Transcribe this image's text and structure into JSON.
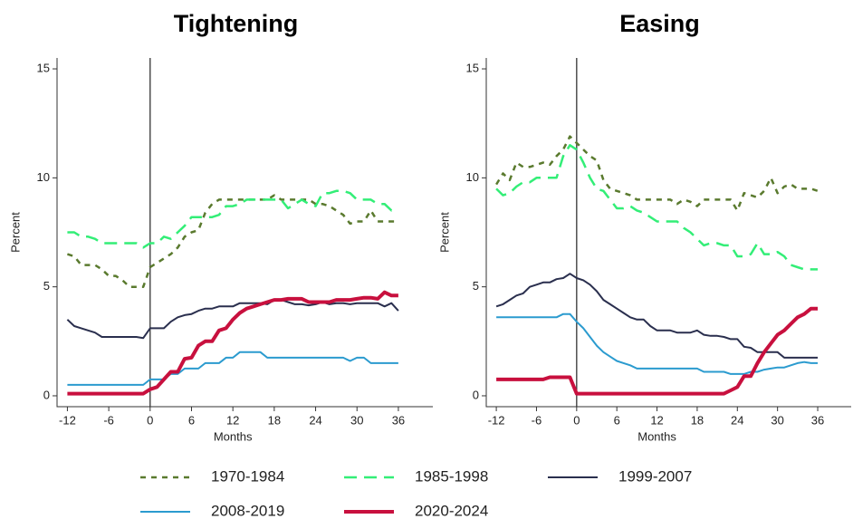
{
  "chart_data": [
    {
      "type": "line",
      "title": "Tightening",
      "xlabel": "Months",
      "ylabel": "Percent",
      "x": [
        -12,
        -11,
        -10,
        -9,
        -8,
        -7,
        -6,
        -5,
        -4,
        -3,
        -2,
        -1,
        0,
        1,
        2,
        3,
        4,
        5,
        6,
        7,
        8,
        9,
        10,
        11,
        12,
        13,
        14,
        15,
        16,
        17,
        18,
        19,
        20,
        21,
        22,
        23,
        24,
        25,
        26,
        27,
        28,
        29,
        30,
        31,
        32,
        33,
        34,
        35,
        36
      ],
      "xlim": [
        -13.5,
        41
      ],
      "ylim": [
        -0.5,
        15.5
      ],
      "xticks": [
        -12,
        -6,
        0,
        6,
        12,
        18,
        24,
        30,
        36
      ],
      "yticks": [
        0,
        5,
        10,
        15
      ],
      "vline": 0,
      "grid": false,
      "series": [
        {
          "name": "1970-1984",
          "color": "#5a7a2e",
          "dash": "dotted",
          "linewidth": 2.5,
          "values": [
            6.5,
            6.4,
            6.0,
            6.0,
            6.0,
            5.8,
            5.5,
            5.5,
            5.3,
            5.0,
            5.0,
            5.0,
            5.9,
            6.1,
            6.3,
            6.5,
            6.8,
            7.3,
            7.5,
            7.6,
            8.4,
            8.8,
            9.0,
            9.0,
            9.0,
            9.0,
            9.0,
            9.0,
            9.0,
            9.0,
            9.2,
            9.0,
            9.0,
            9.0,
            9.0,
            9.0,
            8.8,
            8.8,
            8.7,
            8.5,
            8.3,
            7.9,
            8.0,
            8.0,
            8.5,
            8.0,
            8.0,
            8.0,
            8.0
          ]
        },
        {
          "name": "1985-1998",
          "color": "#33ee77",
          "dash": "dashed",
          "linewidth": 2.5,
          "values": [
            7.5,
            7.5,
            7.3,
            7.3,
            7.2,
            7.0,
            7.0,
            7.0,
            7.0,
            7.0,
            7.0,
            6.8,
            7.0,
            7.0,
            7.3,
            7.2,
            7.5,
            7.8,
            8.2,
            8.2,
            8.2,
            8.2,
            8.3,
            8.7,
            8.7,
            8.8,
            9.0,
            9.0,
            9.0,
            9.0,
            9.0,
            9.0,
            8.6,
            8.8,
            9.0,
            8.8,
            8.7,
            9.3,
            9.3,
            9.4,
            9.4,
            9.3,
            9.0,
            9.0,
            9.0,
            8.8,
            8.8,
            8.5,
            8.6
          ]
        },
        {
          "name": "1999-2007",
          "color": "#2a2f4e",
          "dash": "solid",
          "linewidth": 2,
          "values": [
            3.5,
            3.2,
            3.1,
            3.0,
            2.9,
            2.7,
            2.7,
            2.7,
            2.7,
            2.7,
            2.7,
            2.65,
            3.1,
            3.1,
            3.1,
            3.4,
            3.6,
            3.7,
            3.75,
            3.9,
            4.0,
            4.0,
            4.1,
            4.1,
            4.1,
            4.25,
            4.25,
            4.25,
            4.25,
            4.2,
            4.4,
            4.4,
            4.3,
            4.2,
            4.2,
            4.15,
            4.2,
            4.3,
            4.2,
            4.25,
            4.25,
            4.2,
            4.25,
            4.25,
            4.25,
            4.25,
            4.1,
            4.25,
            3.9
          ]
        },
        {
          "name": "2008-2019",
          "color": "#2b9bcf",
          "dash": "solid",
          "linewidth": 2,
          "values": [
            0.5,
            0.5,
            0.5,
            0.5,
            0.5,
            0.5,
            0.5,
            0.5,
            0.5,
            0.5,
            0.5,
            0.5,
            0.75,
            0.75,
            0.75,
            1.0,
            1.0,
            1.25,
            1.25,
            1.25,
            1.5,
            1.5,
            1.5,
            1.75,
            1.75,
            2.0,
            2.0,
            2.0,
            2.0,
            1.75,
            1.75,
            1.75,
            1.75,
            1.75,
            1.75,
            1.75,
            1.75,
            1.75,
            1.75,
            1.75,
            1.75,
            1.6,
            1.75,
            1.75,
            1.5,
            1.5,
            1.5,
            1.5,
            1.5
          ]
        },
        {
          "name": "2020-2024",
          "color": "#c8103e",
          "dash": "solid",
          "linewidth": 4,
          "values": [
            0.1,
            0.1,
            0.1,
            0.1,
            0.1,
            0.1,
            0.1,
            0.1,
            0.1,
            0.1,
            0.1,
            0.1,
            0.3,
            0.4,
            0.75,
            1.1,
            1.1,
            1.7,
            1.75,
            2.3,
            2.5,
            2.5,
            3.0,
            3.1,
            3.5,
            3.8,
            4.0,
            4.1,
            4.2,
            4.3,
            4.4,
            4.4,
            4.45,
            4.45,
            4.45,
            4.3,
            4.3,
            4.3,
            4.3,
            4.4,
            4.4,
            4.4,
            4.45,
            4.5,
            4.5,
            4.45,
            4.75,
            4.6,
            4.6
          ]
        }
      ]
    },
    {
      "type": "line",
      "title": "Easing",
      "xlabel": "Months",
      "ylabel": "Percent",
      "x": [
        -12,
        -11,
        -10,
        -9,
        -8,
        -7,
        -6,
        -5,
        -4,
        -3,
        -2,
        -1,
        0,
        1,
        2,
        3,
        4,
        5,
        6,
        7,
        8,
        9,
        10,
        11,
        12,
        13,
        14,
        15,
        16,
        17,
        18,
        19,
        20,
        21,
        22,
        23,
        24,
        25,
        26,
        27,
        28,
        29,
        30,
        31,
        32,
        33,
        34,
        35,
        36
      ],
      "xlim": [
        -13.5,
        41
      ],
      "ylim": [
        -0.5,
        15.5
      ],
      "xticks": [
        -12,
        -6,
        0,
        6,
        12,
        18,
        24,
        30,
        36
      ],
      "yticks": [
        0,
        5,
        10,
        15
      ],
      "vline": 0,
      "grid": false,
      "series": [
        {
          "color": "#5a7a2e",
          "dash": "dotted",
          "linewidth": 2.5,
          "values": [
            9.7,
            10.2,
            9.9,
            10.7,
            10.5,
            10.5,
            10.6,
            10.7,
            10.6,
            11.0,
            11.3,
            11.9,
            11.6,
            11.3,
            11.0,
            10.8,
            9.9,
            9.5,
            9.4,
            9.3,
            9.2,
            9.0,
            9.0,
            9.0,
            9.0,
            9.0,
            9.0,
            8.8,
            9.0,
            8.9,
            8.7,
            9.0,
            9.0,
            9.0,
            9.0,
            9.0,
            8.5,
            9.3,
            9.2,
            9.1,
            9.4,
            10.0,
            9.3,
            9.6,
            9.7,
            9.5,
            9.5,
            9.5,
            9.4
          ]
        },
        {
          "color": "#33ee77",
          "dash": "dashed",
          "linewidth": 2.5,
          "values": [
            9.5,
            9.2,
            9.3,
            9.6,
            9.8,
            9.8,
            10.0,
            10.0,
            10.0,
            10.0,
            11.0,
            11.5,
            11.3,
            10.7,
            10.0,
            9.5,
            9.4,
            9.0,
            8.6,
            8.6,
            8.7,
            8.5,
            8.4,
            8.2,
            8.0,
            8.0,
            8.0,
            8.0,
            7.7,
            7.5,
            7.2,
            6.9,
            7.0,
            7.0,
            6.9,
            6.9,
            6.4,
            6.4,
            6.5,
            7.0,
            6.5,
            6.5,
            6.6,
            6.4,
            6.0,
            5.9,
            5.8,
            5.8,
            5.8
          ]
        },
        {
          "color": "#2a2f4e",
          "dash": "solid",
          "linewidth": 2,
          "values": [
            4.1,
            4.2,
            4.4,
            4.6,
            4.7,
            5.0,
            5.1,
            5.2,
            5.2,
            5.35,
            5.4,
            5.6,
            5.4,
            5.3,
            5.1,
            4.8,
            4.4,
            4.2,
            4.0,
            3.8,
            3.6,
            3.5,
            3.5,
            3.2,
            3.0,
            3.0,
            3.0,
            2.9,
            2.9,
            2.9,
            3.0,
            2.8,
            2.75,
            2.75,
            2.7,
            2.6,
            2.6,
            2.25,
            2.2,
            2.0,
            2.0,
            2.0,
            2.0,
            1.75,
            1.75,
            1.75,
            1.75,
            1.75,
            1.75
          ]
        },
        {
          "color": "#2b9bcf",
          "dash": "solid",
          "linewidth": 2,
          "values": [
            3.6,
            3.6,
            3.6,
            3.6,
            3.6,
            3.6,
            3.6,
            3.6,
            3.6,
            3.6,
            3.75,
            3.75,
            3.4,
            3.1,
            2.7,
            2.3,
            2.0,
            1.8,
            1.6,
            1.5,
            1.4,
            1.25,
            1.25,
            1.25,
            1.25,
            1.25,
            1.25,
            1.25,
            1.25,
            1.25,
            1.25,
            1.1,
            1.1,
            1.1,
            1.1,
            1.0,
            1.0,
            1.0,
            1.1,
            1.1,
            1.2,
            1.25,
            1.3,
            1.3,
            1.4,
            1.5,
            1.55,
            1.5,
            1.5
          ]
        },
        {
          "color": "#c8103e",
          "dash": "solid",
          "linewidth": 4,
          "values": [
            0.75,
            0.75,
            0.75,
            0.75,
            0.75,
            0.75,
            0.75,
            0.75,
            0.85,
            0.85,
            0.85,
            0.85,
            0.1,
            0.1,
            0.1,
            0.1,
            0.1,
            0.1,
            0.1,
            0.1,
            0.1,
            0.1,
            0.1,
            0.1,
            0.1,
            0.1,
            0.1,
            0.1,
            0.1,
            0.1,
            0.1,
            0.1,
            0.1,
            0.1,
            0.1,
            0.25,
            0.4,
            0.9,
            0.9,
            1.5,
            2.0,
            2.4,
            2.8,
            3.0,
            3.3,
            3.6,
            3.75,
            4.0,
            4.0
          ]
        }
      ]
    }
  ]
}
